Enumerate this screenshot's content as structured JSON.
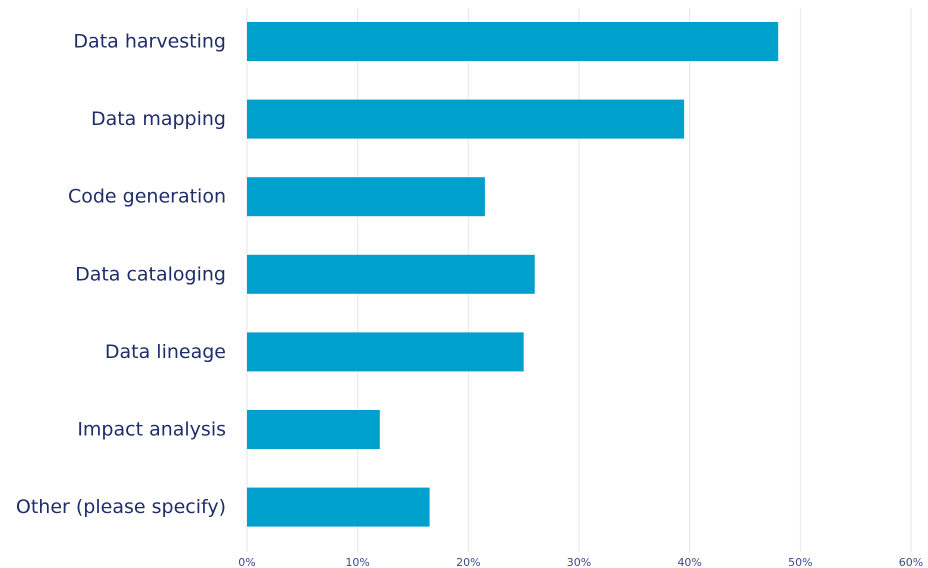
{
  "chart_data": {
    "type": "bar",
    "orientation": "horizontal",
    "title": "",
    "xlabel": "",
    "ylabel": "",
    "categories": [
      "Data harvesting",
      "Data mapping",
      "Code generation",
      "Data cataloging",
      "Data lineage",
      "Impact analysis",
      "Other (please specify)"
    ],
    "values": [
      48,
      39.5,
      21.5,
      26,
      25,
      12,
      16.5
    ],
    "value_unit": "%",
    "xlim": [
      0,
      60
    ],
    "x_ticks": [
      0,
      10,
      20,
      30,
      40,
      50,
      60
    ],
    "x_tick_labels": [
      "0%",
      "10%",
      "20%",
      "30%",
      "40%",
      "50%",
      "60%"
    ],
    "grid": "vertical",
    "legend": "none",
    "bar_color": "#00a0cc"
  }
}
